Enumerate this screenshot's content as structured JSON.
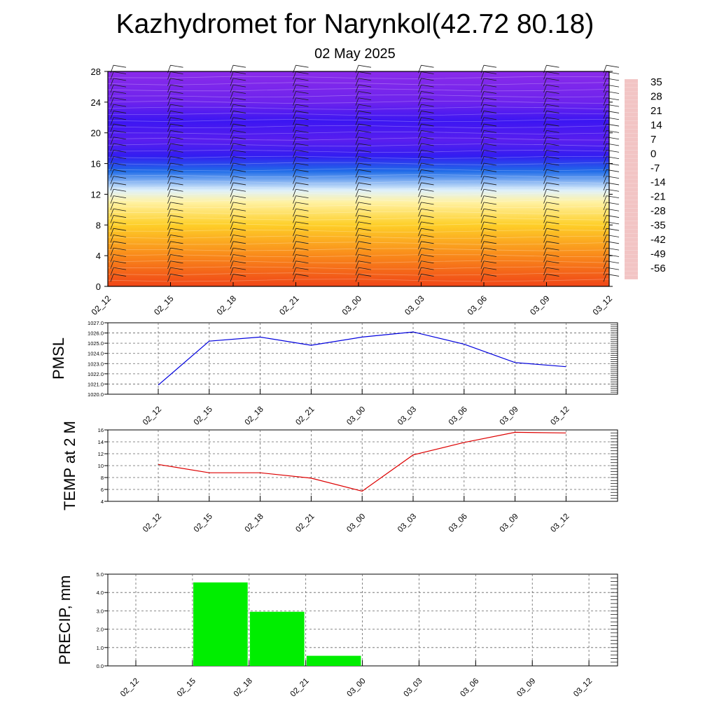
{
  "header": {
    "title": "Kazhydromet for Narynkol(42.72 80.18)",
    "date": "02 May 2025"
  },
  "time_labels": [
    "02_12",
    "02_15",
    "02_18",
    "02_21",
    "03_00",
    "03_03",
    "03_06",
    "03_09",
    "03_12"
  ],
  "chart_data": [
    {
      "id": "cross-section",
      "type": "heatmap",
      "x": [
        "02_12",
        "02_15",
        "02_18",
        "02_21",
        "03_00",
        "03_03",
        "03_06",
        "03_09",
        "03_12"
      ],
      "ylim": [
        0,
        28
      ],
      "yticks": [
        0,
        4,
        8,
        12,
        16,
        20,
        24,
        28
      ],
      "colorbar": {
        "labels": [
          "35",
          "28",
          "21",
          "14",
          "7",
          "0",
          "-7",
          "-14",
          "-21",
          "-28",
          "-35",
          "-42",
          "-49",
          "-56"
        ],
        "stops": [
          {
            "value": 38,
            "color": "#f2c4c4"
          },
          {
            "value": 30,
            "color": "#d81818"
          },
          {
            "value": 20,
            "color": "#e82c14"
          },
          {
            "value": 12,
            "color": "#f4561a"
          },
          {
            "value": 4,
            "color": "#fb9a1a"
          },
          {
            "value": -3,
            "color": "#ffd82a"
          },
          {
            "value": -10,
            "color": "#fff6b8"
          },
          {
            "value": -15,
            "color": "#dff1fb"
          },
          {
            "value": -24,
            "color": "#4cc0ef"
          },
          {
            "value": -33,
            "color": "#2178e6"
          },
          {
            "value": -45,
            "color": "#1c2ef0"
          },
          {
            "value": -52,
            "color": "#3c16f2"
          },
          {
            "value": -60,
            "color": "#8a2bea"
          }
        ]
      },
      "temperature_profile": [
        {
          "height": 0,
          "temp": 15
        },
        {
          "height": 4,
          "temp": 6
        },
        {
          "height": 8,
          "temp": -2
        },
        {
          "height": 11,
          "temp": -9
        },
        {
          "height": 12.5,
          "temp": -15
        },
        {
          "height": 15,
          "temp": -35
        },
        {
          "height": 17,
          "temp": -50
        },
        {
          "height": 19,
          "temp": -55
        },
        {
          "height": 21.5,
          "temp": -52
        },
        {
          "height": 24,
          "temp": -57
        },
        {
          "height": 28,
          "temp": -60
        }
      ]
    },
    {
      "id": "pmsl",
      "type": "line",
      "ylabel": "PMSL",
      "x": [
        "02_12",
        "02_15",
        "02_18",
        "02_21",
        "03_00",
        "03_03",
        "03_06",
        "03_09",
        "03_12"
      ],
      "values": [
        1020.9,
        1025.2,
        1025.6,
        1024.8,
        1025.6,
        1026.1,
        1024.9,
        1023.1,
        1022.7
      ],
      "ylim": [
        1020.0,
        1027.0
      ],
      "yticks": [
        "1020.0",
        "1021.0",
        "1022.0",
        "1023.0",
        "1024.0",
        "1025.0",
        "1026.0",
        "1027.0"
      ],
      "color": "#0000dd",
      "grid": true
    },
    {
      "id": "temp2m",
      "type": "line",
      "ylabel": "TEMP at 2 M",
      "x": [
        "02_12",
        "02_15",
        "02_18",
        "02_21",
        "03_00",
        "03_03",
        "03_06",
        "03_09",
        "03_12"
      ],
      "values": [
        10.2,
        8.8,
        8.8,
        7.9,
        5.7,
        11.8,
        13.9,
        15.6,
        15.5
      ],
      "ylim": [
        4,
        16
      ],
      "yticks": [
        "4",
        "6",
        "8",
        "10",
        "12",
        "14",
        "16"
      ],
      "color": "#dd0000",
      "grid": true
    },
    {
      "id": "precip",
      "type": "bar",
      "ylabel": "PRECIP, mm",
      "categories": [
        "02_12",
        "02_15",
        "02_18",
        "02_21",
        "03_00",
        "03_03",
        "03_06",
        "03_09",
        "03_12"
      ],
      "values": [
        0,
        4.55,
        2.95,
        0.55,
        0,
        0,
        0,
        0,
        0
      ],
      "ylim": [
        0.0,
        5.0
      ],
      "yticks": [
        "0.0",
        "1.0",
        "2.0",
        "3.0",
        "4.0",
        "5.0"
      ],
      "color": "#00ee00",
      "grid": true
    }
  ]
}
